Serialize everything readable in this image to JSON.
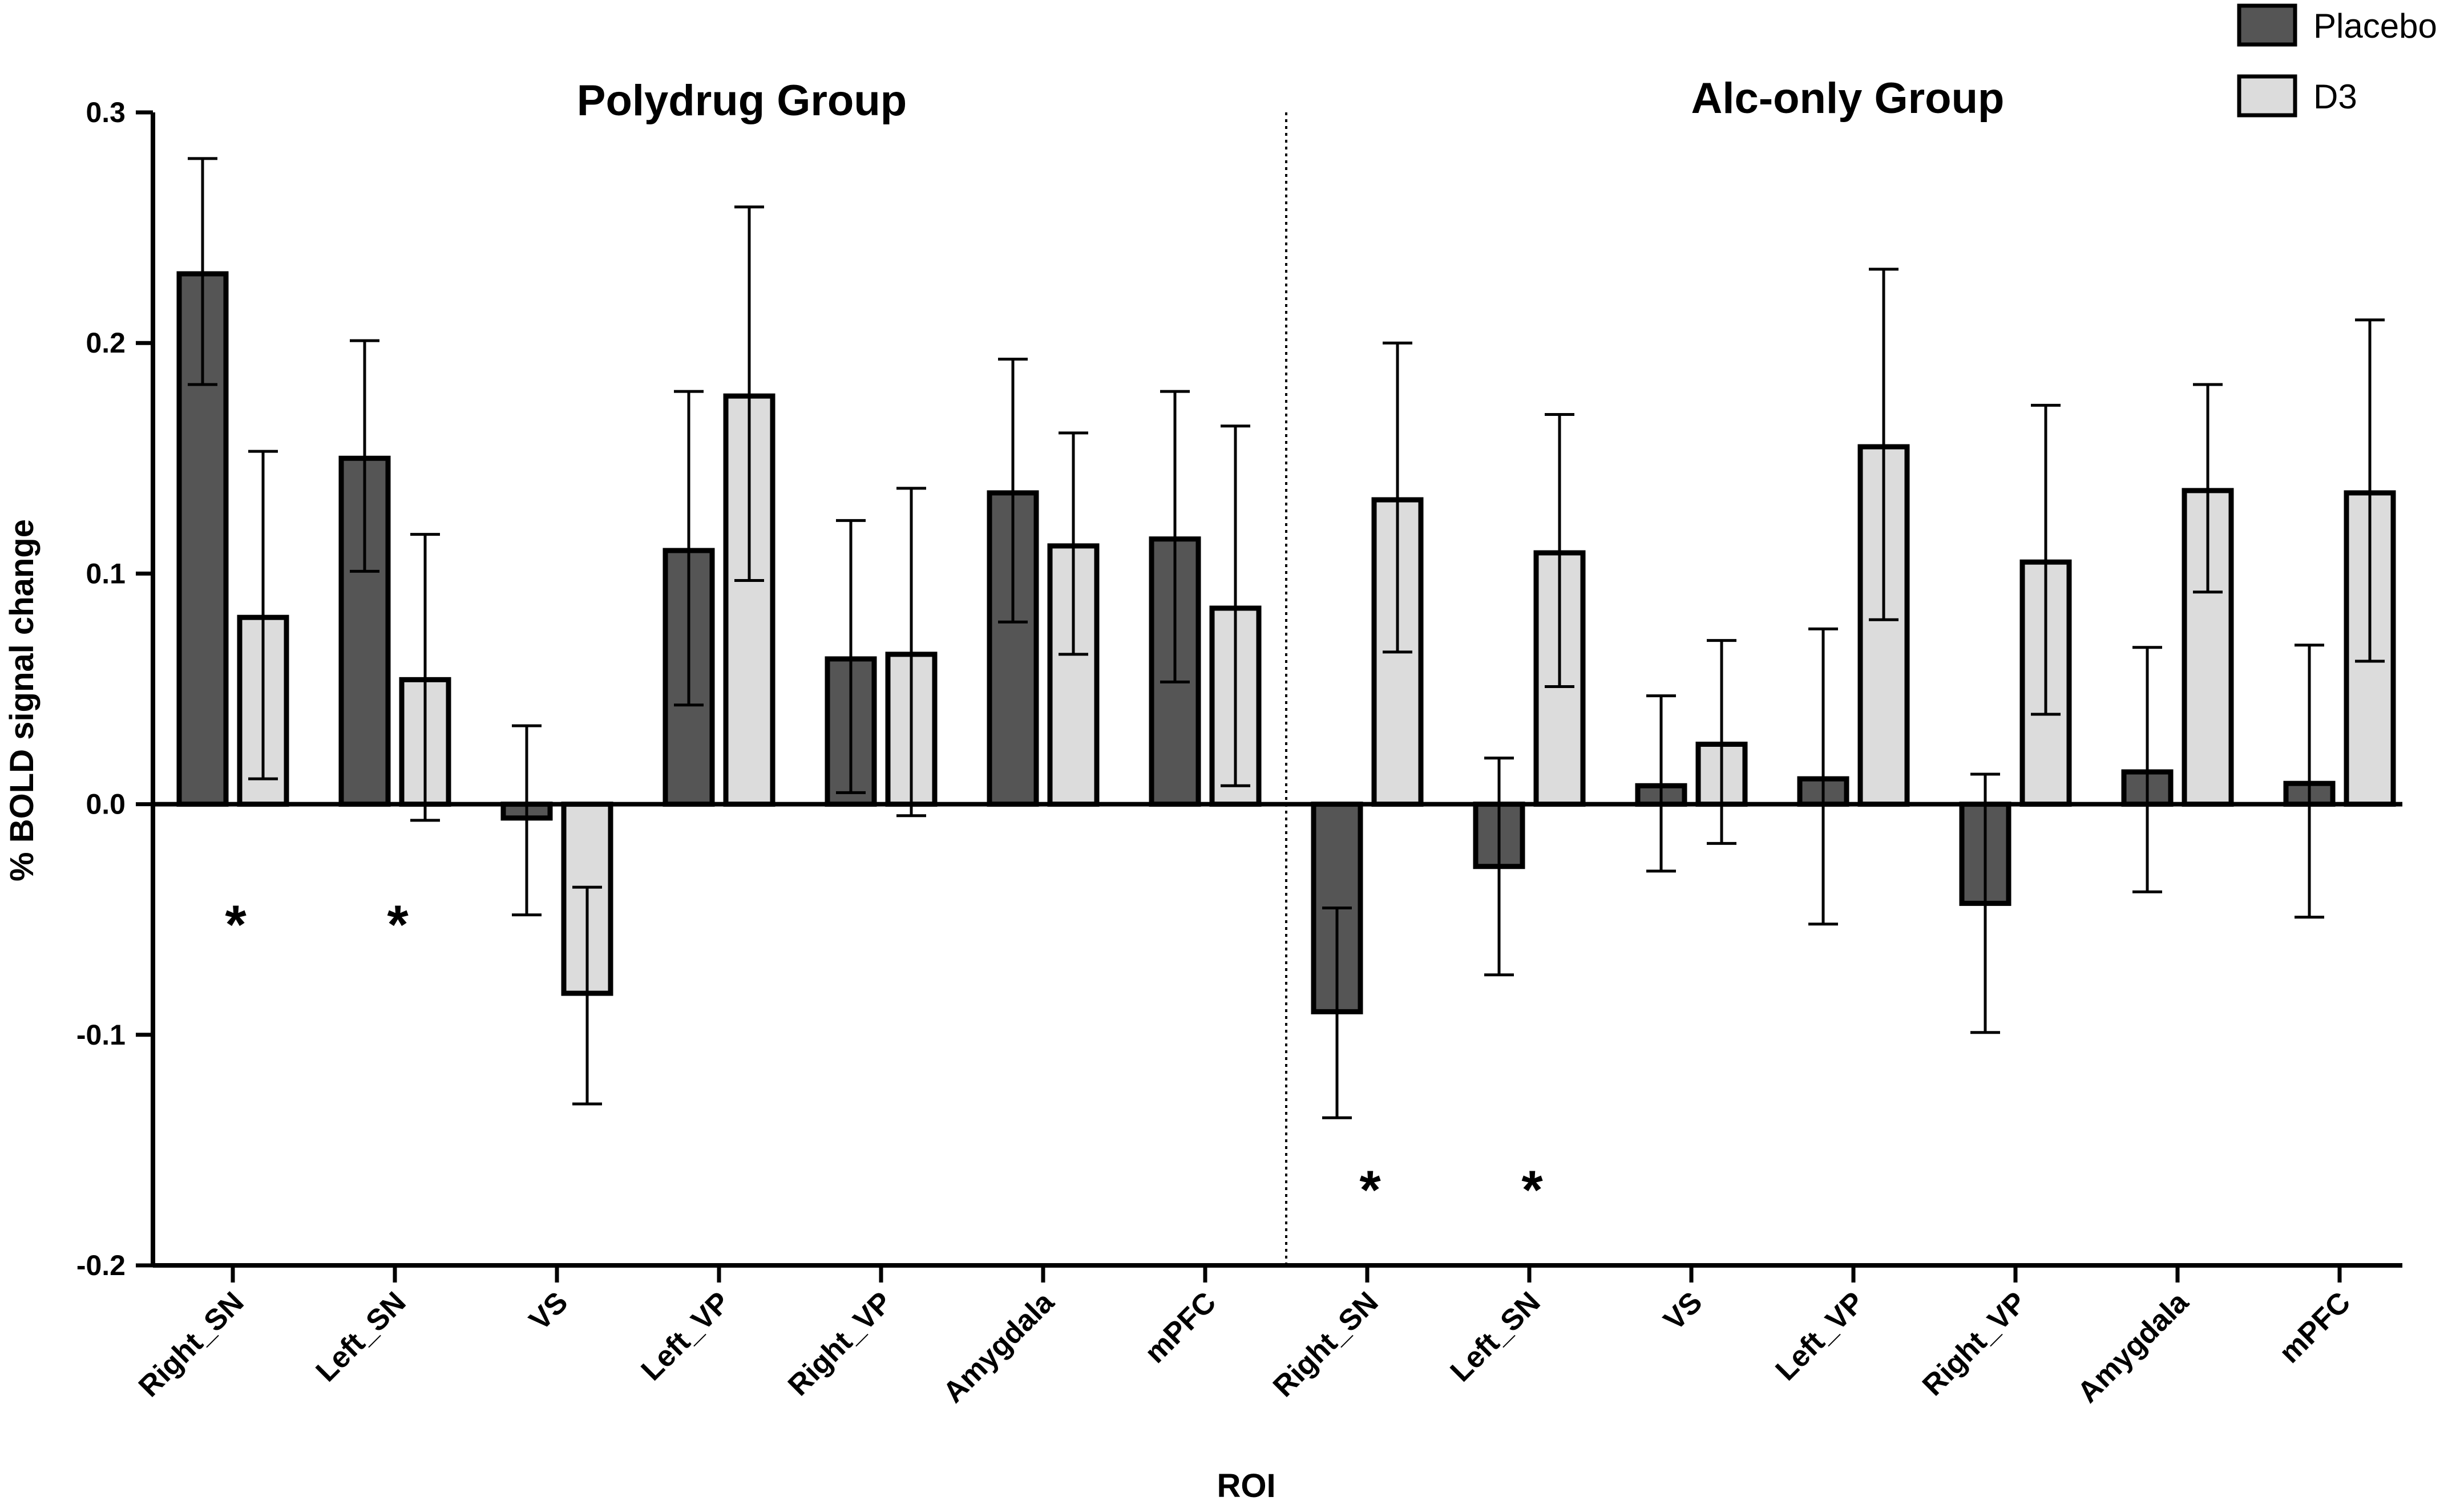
{
  "chart_data": {
    "type": "bar",
    "title": "",
    "xlabel": "ROI",
    "ylabel": "% BOLD signal change",
    "ylim": [
      -0.2,
      0.3
    ],
    "yticks": [
      "0.3",
      "0.2",
      "0.1",
      "0.0",
      "-0.1",
      "-0.2"
    ],
    "ytick_values": [
      0.3,
      0.2,
      0.1,
      0.0,
      -0.1,
      -0.2
    ],
    "grid": false,
    "legend": {
      "position": "top-right",
      "entries": [
        "Placebo",
        "D3"
      ]
    },
    "colors": {
      "Placebo": "#555555",
      "D3": "#dcdcdc",
      "edge": "#000000",
      "axis": "#000000"
    },
    "groups": [
      "Polydrug Group",
      "Alc-only Group"
    ],
    "categories": [
      "Right_SN",
      "Left_SN",
      "VS",
      "Left_VP",
      "Right_VP",
      "Amygdala",
      "mPFC",
      "Right_SN",
      "Left_SN",
      "VS",
      "Left_VP",
      "Right_VP",
      "Amygdala",
      "mPFC"
    ],
    "category_group": [
      0,
      0,
      0,
      0,
      0,
      0,
      0,
      1,
      1,
      1,
      1,
      1,
      1,
      1
    ],
    "series": [
      {
        "name": "Placebo",
        "values": [
          0.23,
          0.15,
          -0.006,
          0.11,
          0.063,
          0.135,
          0.115,
          -0.09,
          -0.027,
          0.008,
          0.011,
          -0.043,
          0.014,
          0.009
        ],
        "err_upper": [
          0.28,
          0.201,
          0.034,
          0.179,
          0.123,
          0.193,
          0.179,
          -0.045,
          0.02,
          0.047,
          0.076,
          0.013,
          0.068,
          0.069
        ],
        "err_lower": [
          0.182,
          0.101,
          -0.048,
          0.043,
          0.005,
          0.079,
          0.053,
          -0.136,
          -0.074,
          -0.029,
          -0.052,
          -0.099,
          -0.038,
          -0.049
        ]
      },
      {
        "name": "D3",
        "values": [
          0.081,
          0.054,
          -0.082,
          0.177,
          0.065,
          0.112,
          0.085,
          0.132,
          0.109,
          0.026,
          0.155,
          0.105,
          0.136,
          0.135
        ],
        "err_upper": [
          0.153,
          0.117,
          -0.036,
          0.259,
          0.137,
          0.161,
          0.164,
          0.2,
          0.169,
          0.071,
          0.232,
          0.173,
          0.182,
          0.21
        ],
        "err_lower": [
          0.011,
          -0.007,
          -0.13,
          0.097,
          -0.005,
          0.065,
          0.008,
          0.066,
          0.051,
          -0.017,
          0.08,
          0.039,
          0.092,
          0.062
        ]
      }
    ],
    "annotations": [
      {
        "text": "*",
        "category_index": 0,
        "y": -0.045
      },
      {
        "text": "*",
        "category_index": 1,
        "y": -0.045
      },
      {
        "text": "*",
        "category_index": 7,
        "y": -0.16
      },
      {
        "text": "*",
        "category_index": 8,
        "y": -0.16
      }
    ]
  }
}
